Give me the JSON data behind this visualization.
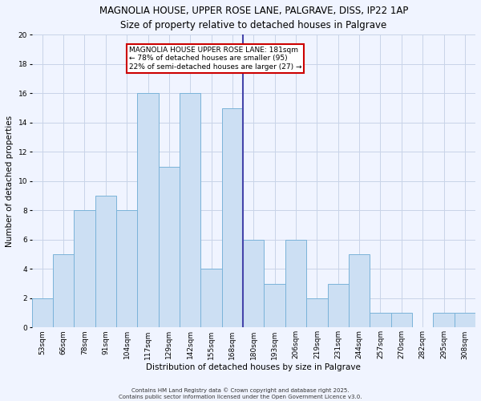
{
  "title": "MAGNOLIA HOUSE, UPPER ROSE LANE, PALGRAVE, DISS, IP22 1AP",
  "subtitle": "Size of property relative to detached houses in Palgrave",
  "xlabel": "Distribution of detached houses by size in Palgrave",
  "ylabel": "Number of detached properties",
  "bar_labels": [
    "53sqm",
    "66sqm",
    "78sqm",
    "91sqm",
    "104sqm",
    "117sqm",
    "129sqm",
    "142sqm",
    "155sqm",
    "168sqm",
    "180sqm",
    "193sqm",
    "206sqm",
    "219sqm",
    "231sqm",
    "244sqm",
    "257sqm",
    "270sqm",
    "282sqm",
    "295sqm",
    "308sqm"
  ],
  "bar_values": [
    2,
    5,
    8,
    9,
    8,
    16,
    11,
    16,
    4,
    15,
    6,
    3,
    6,
    2,
    3,
    5,
    1,
    1,
    0,
    1,
    1
  ],
  "bar_color": "#ccdff3",
  "bar_edge_color": "#7ab3d9",
  "vline_index": 10,
  "annotation_text_line1": "MAGNOLIA HOUSE UPPER ROSE LANE: 181sqm",
  "annotation_text_line2": "← 78% of detached houses are smaller (95)",
  "annotation_text_line3": "22% of semi-detached houses are larger (27) →",
  "annotation_box_edgecolor": "#cc0000",
  "vline_color": "#4444aa",
  "ylim": [
    0,
    20
  ],
  "yticks": [
    0,
    2,
    4,
    6,
    8,
    10,
    12,
    14,
    16,
    18,
    20
  ],
  "footer1": "Contains HM Land Registry data © Crown copyright and database right 2025.",
  "footer2": "Contains public sector information licensed under the Open Government Licence v3.0.",
  "bg_color": "#f0f4ff",
  "grid_color": "#c8d4e8",
  "title_fontsize": 8.5,
  "subtitle_fontsize": 8.0,
  "axis_label_fontsize": 7.5,
  "tick_fontsize": 6.5,
  "annotation_fontsize": 6.5,
  "footer_fontsize": 5.0
}
